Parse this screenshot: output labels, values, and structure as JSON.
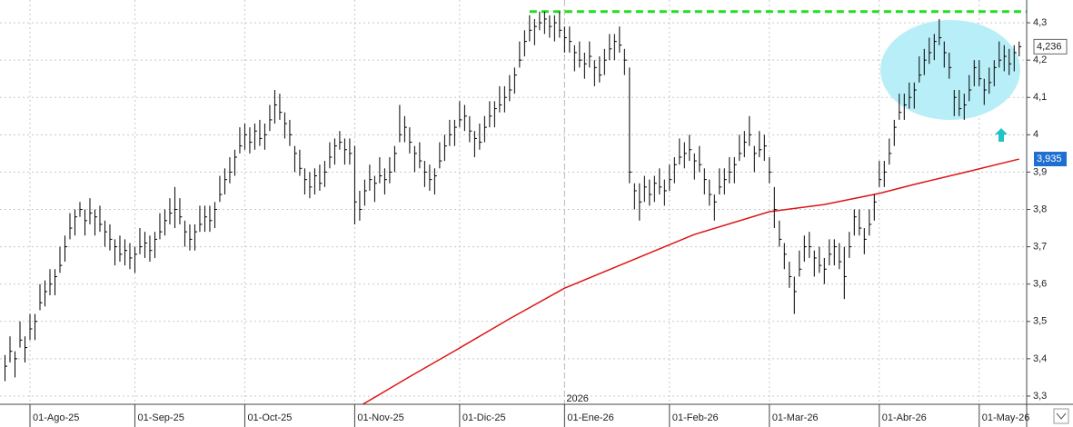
{
  "chart_data": {
    "type": "ohlc",
    "xlim": [
      -1,
      204.5
    ],
    "ylim": [
      3.278,
      4.361
    ],
    "yticks": [
      {
        "value": 3.3,
        "label": "3,3"
      },
      {
        "value": 3.4,
        "label": "3,4"
      },
      {
        "value": 3.5,
        "label": "3,5"
      },
      {
        "value": 3.6,
        "label": "3,6"
      },
      {
        "value": 3.7,
        "label": "3,7"
      },
      {
        "value": 3.8,
        "label": "3,8"
      },
      {
        "value": 3.9,
        "label": "3,9"
      },
      4,
      {
        "value": 4.1,
        "label": "4,1"
      },
      {
        "value": 4.2,
        "label": "4,2"
      },
      {
        "value": 4.3,
        "label": "4,3"
      }
    ],
    "xticks": [
      {
        "value": 5,
        "label": "01-Ago-25"
      },
      {
        "value": 26,
        "label": "01-Sep-25"
      },
      {
        "value": 48,
        "label": "01-Oct-25"
      },
      {
        "value": 70,
        "label": "01-Nov-25"
      },
      {
        "value": 91,
        "label": "01-Dic-25"
      },
      {
        "value": 112,
        "label": "01-Ene-26"
      },
      {
        "value": 133,
        "label": "01-Feb-26"
      },
      {
        "value": 153,
        "label": "01-Mar-26"
      },
      {
        "value": 175,
        "label": "01-Abr-26"
      },
      {
        "value": 195,
        "label": "01-May-26"
      }
    ],
    "year_marker": {
      "value": 112,
      "label": "2026"
    },
    "grid": true,
    "color": "#000000",
    "high": [
      3.41,
      3.46,
      3.42,
      3.5,
      3.46,
      3.52,
      3.52,
      3.6,
      3.61,
      3.64,
      3.64,
      3.7,
      3.73,
      3.79,
      3.8,
      3.82,
      3.8,
      3.83,
      3.8,
      3.81,
      3.77,
      3.76,
      3.72,
      3.73,
      3.72,
      3.71,
      3.7,
      3.75,
      3.74,
      3.73,
      3.74,
      3.79,
      3.8,
      3.83,
      3.86,
      3.83,
      3.77,
      3.76,
      3.76,
      3.81,
      3.81,
      3.81,
      3.82,
      3.89,
      3.91,
      3.94,
      3.96,
      4.02,
      4.03,
      4.02,
      4.03,
      4.04,
      4.03,
      4.08,
      4.12,
      4.11,
      4.06,
      4.04,
      3.97,
      3.96,
      3.91,
      3.9,
      3.91,
      3.92,
      3.93,
      3.98,
      3.99,
      4.01,
      3.99,
      3.99,
      3.97,
      3.85,
      3.88,
      3.92,
      3.89,
      3.94,
      3.91,
      3.94,
      3.97,
      4.08,
      4.05,
      4.02,
      3.97,
      3.98,
      3.93,
      3.92,
      3.91,
      3.98,
      4.0,
      4.04,
      4.04,
      4.09,
      4.08,
      4.05,
      4.01,
      4.03,
      4.05,
      4.09,
      4.09,
      4.13,
      4.13,
      4.16,
      4.18,
      4.25,
      4.28,
      4.32,
      4.31,
      4.33,
      4.33,
      4.32,
      4.32,
      4.33,
      4.29,
      4.29,
      4.24,
      4.25,
      4.22,
      4.25,
      4.2,
      4.21,
      4.23,
      4.27,
      4.27,
      4.29,
      4.23,
      4.18,
      3.87,
      3.87,
      3.89,
      3.88,
      3.89,
      3.91,
      3.88,
      3.92,
      3.94,
      3.99,
      3.98,
      4.0,
      3.95,
      3.97,
      3.91,
      3.88,
      3.84,
      3.91,
      3.91,
      3.94,
      3.94,
      4.0,
      4.01,
      4.05,
      3.97,
      4.01,
      4.0,
      3.94,
      3.86,
      3.77,
      3.71,
      3.66,
      3.62,
      3.69,
      3.73,
      3.74,
      3.69,
      3.7,
      3.67,
      3.72,
      3.72,
      3.71,
      3.7,
      3.74,
      3.8,
      3.8,
      3.75,
      3.8,
      3.84,
      3.93,
      3.93,
      3.99,
      4.04,
      4.11,
      4.11,
      4.14,
      4.14,
      4.21,
      4.23,
      4.26,
      4.27,
      4.31,
      4.25,
      4.22,
      4.12,
      4.12,
      4.11,
      4.16,
      4.2,
      4.2,
      4.15,
      4.18,
      4.2,
      4.25,
      4.24,
      4.23,
      4.24,
      4.25
    ],
    "low": [
      3.34,
      3.39,
      3.35,
      3.43,
      3.39,
      3.45,
      3.45,
      3.53,
      3.54,
      3.57,
      3.57,
      3.63,
      3.66,
      3.72,
      3.73,
      3.78,
      3.73,
      3.76,
      3.73,
      3.74,
      3.7,
      3.69,
      3.65,
      3.66,
      3.65,
      3.64,
      3.63,
      3.68,
      3.67,
      3.66,
      3.67,
      3.72,
      3.73,
      3.76,
      3.75,
      3.76,
      3.7,
      3.69,
      3.69,
      3.74,
      3.74,
      3.74,
      3.75,
      3.82,
      3.84,
      3.87,
      3.89,
      3.95,
      3.96,
      3.95,
      3.96,
      3.97,
      3.96,
      4.01,
      4.03,
      4.04,
      3.99,
      3.97,
      3.9,
      3.89,
      3.84,
      3.83,
      3.84,
      3.85,
      3.86,
      3.91,
      3.92,
      3.96,
      3.92,
      3.92,
      3.76,
      3.77,
      3.81,
      3.85,
      3.82,
      3.87,
      3.84,
      3.87,
      3.9,
      3.98,
      3.98,
      3.95,
      3.9,
      3.91,
      3.86,
      3.85,
      3.84,
      3.91,
      3.93,
      3.97,
      3.97,
      4.02,
      4.01,
      3.98,
      3.94,
      3.96,
      3.98,
      4.02,
      4.02,
      4.06,
      4.06,
      4.09,
      4.11,
      4.18,
      4.21,
      4.25,
      4.24,
      4.28,
      4.27,
      4.26,
      4.25,
      4.26,
      4.22,
      4.22,
      4.17,
      4.18,
      4.15,
      4.18,
      4.13,
      4.14,
      4.16,
      4.2,
      4.2,
      4.22,
      4.16,
      3.87,
      3.8,
      3.77,
      3.82,
      3.81,
      3.82,
      3.84,
      3.81,
      3.85,
      3.87,
      3.92,
      3.91,
      3.93,
      3.88,
      3.9,
      3.84,
      3.81,
      3.77,
      3.84,
      3.84,
      3.87,
      3.87,
      3.93,
      3.94,
      3.97,
      3.9,
      3.94,
      3.93,
      3.87,
      3.75,
      3.7,
      3.64,
      3.59,
      3.52,
      3.62,
      3.66,
      3.67,
      3.62,
      3.63,
      3.6,
      3.65,
      3.65,
      3.64,
      3.56,
      3.67,
      3.73,
      3.73,
      3.68,
      3.73,
      3.77,
      3.86,
      3.86,
      3.92,
      3.97,
      4.04,
      4.04,
      4.07,
      4.07,
      4.14,
      4.16,
      4.19,
      4.2,
      4.24,
      4.18,
      4.15,
      4.05,
      4.05,
      4.04,
      4.09,
      4.13,
      4.13,
      4.08,
      4.11,
      4.13,
      4.18,
      4.17,
      4.16,
      4.17,
      4.21
    ],
    "close": [
      3.38,
      3.42,
      3.4,
      3.45,
      3.43,
      3.48,
      3.5,
      3.55,
      3.58,
      3.6,
      3.62,
      3.65,
      3.7,
      3.75,
      3.78,
      3.8,
      3.77,
      3.79,
      3.78,
      3.76,
      3.74,
      3.72,
      3.7,
      3.68,
      3.69,
      3.67,
      3.68,
      3.7,
      3.71,
      3.69,
      3.72,
      3.74,
      3.77,
      3.79,
      3.8,
      3.78,
      3.74,
      3.72,
      3.74,
      3.76,
      3.78,
      3.77,
      3.8,
      3.84,
      3.88,
      3.9,
      3.94,
      3.97,
      4.0,
      3.98,
      4.01,
      3.99,
      4.0,
      4.04,
      4.08,
      4.06,
      4.03,
      4.0,
      3.95,
      3.91,
      3.88,
      3.86,
      3.89,
      3.87,
      3.9,
      3.94,
      3.97,
      3.98,
      3.96,
      3.95,
      3.82,
      3.8,
      3.85,
      3.88,
      3.87,
      3.89,
      3.88,
      3.9,
      3.95,
      4.0,
      4.02,
      3.98,
      3.95,
      3.93,
      3.9,
      3.88,
      3.89,
      3.93,
      3.97,
      4.0,
      4.02,
      4.04,
      4.05,
      4.01,
      3.99,
      3.98,
      4.02,
      4.05,
      4.07,
      4.08,
      4.1,
      4.12,
      4.16,
      4.2,
      4.25,
      4.28,
      4.29,
      4.3,
      4.31,
      4.29,
      4.3,
      4.28,
      4.26,
      4.25,
      4.22,
      4.2,
      4.19,
      4.21,
      4.18,
      4.16,
      4.2,
      4.23,
      4.25,
      4.24,
      4.2,
      3.9,
      3.85,
      3.82,
      3.86,
      3.84,
      3.87,
      3.86,
      3.85,
      3.88,
      3.92,
      3.94,
      3.95,
      3.96,
      3.93,
      3.92,
      3.88,
      3.84,
      3.82,
      3.86,
      3.88,
      3.9,
      3.92,
      3.95,
      3.98,
      4.0,
      3.95,
      3.96,
      3.97,
      3.9,
      3.8,
      3.72,
      3.68,
      3.62,
      3.58,
      3.64,
      3.7,
      3.7,
      3.67,
      3.65,
      3.64,
      3.68,
      3.7,
      3.66,
      3.62,
      3.7,
      3.78,
      3.75,
      3.72,
      3.76,
      3.82,
      3.88,
      3.9,
      3.95,
      4.02,
      4.06,
      4.08,
      4.1,
      4.12,
      4.16,
      4.2,
      4.22,
      4.25,
      4.26,
      4.22,
      4.18,
      4.1,
      4.07,
      4.08,
      4.12,
      4.18,
      4.15,
      4.12,
      4.14,
      4.18,
      4.2,
      4.21,
      4.19,
      4.22,
      4.236
    ],
    "close_last_label": "4,236",
    "resistance": {
      "value": 4.33,
      "color": "#22dd22"
    },
    "moving_average": {
      "color": "#dd1515",
      "x": [
        71,
        81,
        90,
        101,
        112,
        127,
        138,
        153,
        164,
        175,
        182,
        192,
        203
      ],
      "values": [
        3.273,
        3.352,
        3.421,
        3.507,
        3.589,
        3.672,
        3.733,
        3.794,
        3.813,
        3.843,
        3.867,
        3.899,
        3.935
      ],
      "value_label": "3,935"
    }
  }
}
